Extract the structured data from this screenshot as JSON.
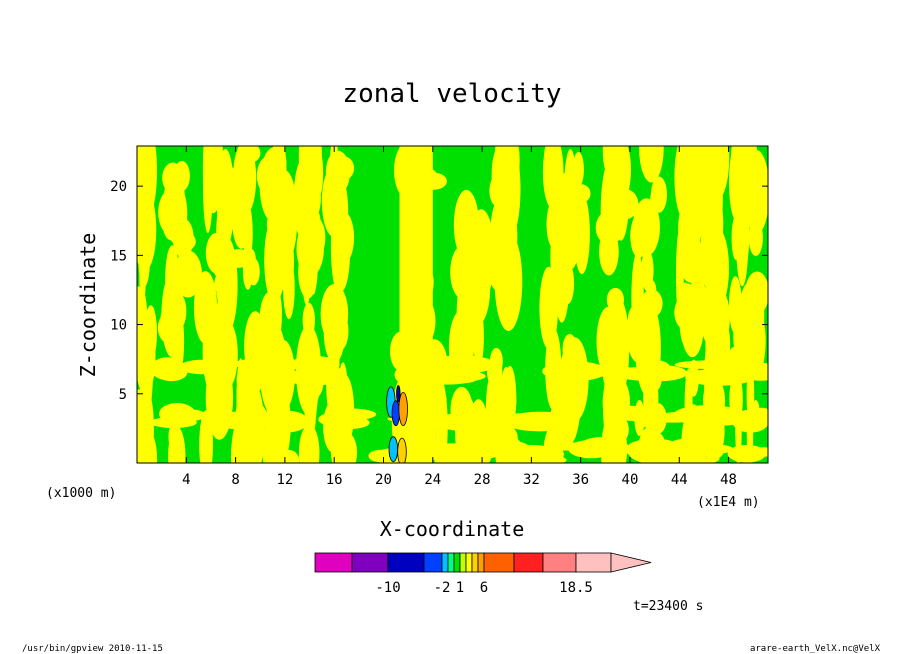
{
  "chart_data": {
    "type": "heatmap",
    "title": "zonal velocity",
    "xlabel": "X-coordinate",
    "ylabel": "Z-coordinate",
    "x_unit_left": "(x1000 m)",
    "x_unit_right": "(x1E4 m)",
    "x_ticks": [
      4,
      8,
      12,
      16,
      20,
      24,
      28,
      32,
      36,
      40,
      44,
      48
    ],
    "y_ticks": [
      5,
      10,
      15,
      20
    ],
    "xlim": [
      0,
      51.2
    ],
    "ylim": [
      0,
      22.9
    ],
    "grid": false,
    "colorbar": {
      "tick_labels": [
        "-10",
        "-2",
        "1",
        "6",
        "18.5"
      ],
      "tick_values": [
        -10,
        -2,
        1,
        6,
        18.5
      ],
      "levels": [
        -18.5,
        -14,
        -10,
        -6,
        -2,
        -1,
        0,
        1,
        2,
        3,
        4,
        6,
        10,
        14,
        18.5
      ],
      "colors": [
        "#e000c0",
        "#8000c0",
        "#0000c0",
        "#0040ff",
        "#00c0ff",
        "#00ff80",
        "#00e000",
        "#c0ff00",
        "#ffff00",
        "#ffd000",
        "#ffa000",
        "#ff6000",
        "#ff2020",
        "#ff8080",
        "#ffc0c0"
      ],
      "orientation": "horizontal",
      "placement": "bottom-center"
    },
    "dominant_fills": {
      "positive": "#ffff00",
      "negative": "#00e000"
    },
    "time_label": "t=23400 s"
  },
  "footer": {
    "left": "/usr/bin/gpview 2010-11-15",
    "right": "arare-earth_VelX.nc@VelX"
  }
}
